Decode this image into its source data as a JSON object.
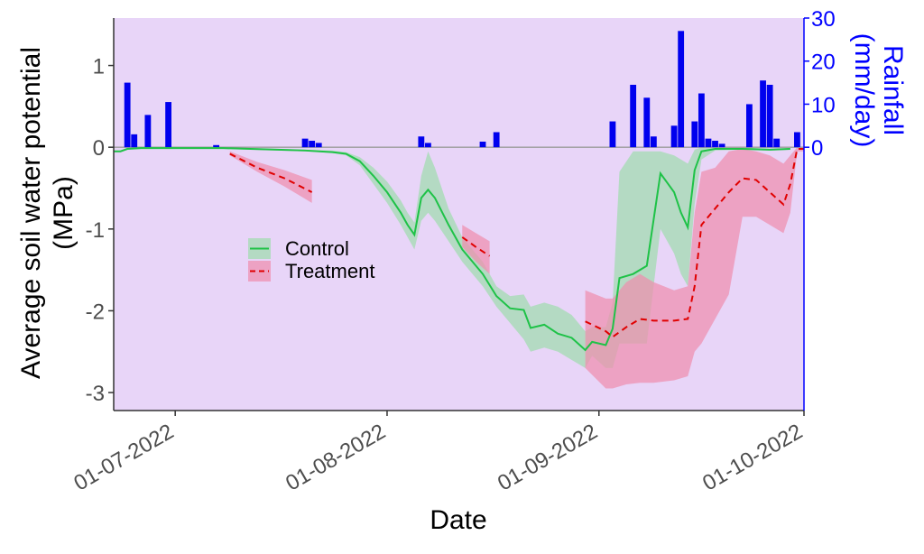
{
  "colors": {
    "panel_bg": "#e8d5f8",
    "control_line": "#1ec247",
    "control_ribbon": "#9fdcaf",
    "treatment_line": "#e00000",
    "treatment_ribbon": "#ef8faf",
    "rain_bar": "#0000ee",
    "zero_line": "#9a9a9a",
    "axis_line": "#333333",
    "rain_axis": "#0000ff"
  },
  "chart_data": {
    "type": "line",
    "xlabel": "Date",
    "ylabel_line1": "Average soil water potential",
    "ylabel_line2": "(MPa)",
    "y2label_line1": "Rainfall",
    "y2label_line2": "(mm/day)",
    "xlim": [
      "2022-06-22",
      "2022-10-01"
    ],
    "ylim": [
      -3.22,
      1.58
    ],
    "y2lim": [
      0,
      30
    ],
    "x_ticks": [
      {
        "date": "2022-07-01",
        "label": "01-07-2022"
      },
      {
        "date": "2022-08-01",
        "label": "01-08-2022"
      },
      {
        "date": "2022-09-01",
        "label": "01-09-2022"
      },
      {
        "date": "2022-10-01",
        "label": "01-10-2022"
      }
    ],
    "y_ticks": [
      {
        "value": 1,
        "label": "1"
      },
      {
        "value": 0,
        "label": "0"
      },
      {
        "value": -1,
        "label": "-1"
      },
      {
        "value": -2,
        "label": "-2"
      },
      {
        "value": -3,
        "label": "-3"
      }
    ],
    "y2_ticks": [
      {
        "value": 0,
        "label": "0"
      },
      {
        "value": 10,
        "label": "10"
      },
      {
        "value": 20,
        "label": "20"
      },
      {
        "value": 30,
        "label": "30"
      }
    ],
    "grid": false,
    "legend_position": "center-left",
    "legend": [
      {
        "label": "Control",
        "style": "solid",
        "series": "control"
      },
      {
        "label": "Treatment",
        "style": "dashed",
        "series": "treatment"
      }
    ],
    "series": [
      {
        "id": "control",
        "points": [
          [
            "2022-06-22",
            -0.05,
            -0.06,
            -0.04
          ],
          [
            "2022-06-23",
            -0.05,
            -0.06,
            -0.04
          ],
          [
            "2022-06-24",
            -0.02,
            -0.03,
            -0.01
          ],
          [
            "2022-06-26",
            -0.01,
            -0.02,
            0.0
          ],
          [
            "2022-06-30",
            -0.01,
            -0.02,
            0.0
          ],
          [
            "2022-07-04",
            -0.01,
            -0.02,
            0.0
          ],
          [
            "2022-07-08",
            -0.01,
            -0.02,
            0.0
          ],
          [
            "2022-07-12",
            -0.02,
            -0.03,
            -0.01
          ],
          [
            "2022-07-16",
            -0.03,
            -0.04,
            -0.02
          ],
          [
            "2022-07-20",
            -0.04,
            -0.05,
            -0.03
          ],
          [
            "2022-07-24",
            -0.06,
            -0.07,
            -0.04
          ],
          [
            "2022-07-26",
            -0.08,
            -0.1,
            -0.06
          ],
          [
            "2022-07-28",
            -0.17,
            -0.22,
            -0.12
          ],
          [
            "2022-07-30",
            -0.35,
            -0.45,
            -0.25
          ],
          [
            "2022-08-01",
            -0.55,
            -0.68,
            -0.42
          ],
          [
            "2022-08-03",
            -0.8,
            -0.95,
            -0.65
          ],
          [
            "2022-08-04",
            -0.95,
            -1.1,
            -0.8
          ],
          [
            "2022-08-05",
            -1.07,
            -1.25,
            -0.92
          ],
          [
            "2022-08-06",
            -0.62,
            -0.9,
            -0.35
          ],
          [
            "2022-08-07",
            -0.52,
            -0.8,
            -0.05
          ],
          [
            "2022-08-08",
            -0.62,
            -0.9,
            -0.25
          ],
          [
            "2022-08-10",
            -0.95,
            -1.15,
            -0.75
          ],
          [
            "2022-08-12",
            -1.25,
            -1.4,
            -1.1
          ],
          [
            "2022-08-15",
            -1.55,
            -1.7,
            -1.4
          ],
          [
            "2022-08-17",
            -1.82,
            -1.95,
            -1.7
          ],
          [
            "2022-08-19",
            -1.97,
            -2.15,
            -1.82
          ],
          [
            "2022-08-21",
            -1.99,
            -2.35,
            -1.8
          ],
          [
            "2022-08-22",
            -2.21,
            -2.5,
            -1.95
          ],
          [
            "2022-08-24",
            -2.17,
            -2.45,
            -1.9
          ],
          [
            "2022-08-26",
            -2.28,
            -2.5,
            -1.95
          ],
          [
            "2022-08-28",
            -2.33,
            -2.6,
            -2.05
          ],
          [
            "2022-08-30",
            -2.48,
            -2.7,
            -2.25
          ],
          [
            "2022-08-31",
            -2.38,
            -2.55,
            -2.2
          ],
          [
            "2022-09-02",
            -2.42,
            -2.7,
            -2.2
          ],
          [
            "2022-09-03",
            -2.22,
            -2.7,
            -1.9
          ],
          [
            "2022-09-04",
            -1.6,
            -2.4,
            -0.3
          ],
          [
            "2022-09-06",
            -1.55,
            -2.4,
            -0.05
          ],
          [
            "2022-09-08",
            -1.45,
            -2.4,
            -0.05
          ],
          [
            "2022-09-10",
            -0.32,
            -1.0,
            -0.05
          ],
          [
            "2022-09-12",
            -0.55,
            -1.3,
            -0.1
          ],
          [
            "2022-09-13",
            -0.8,
            -1.55,
            -0.15
          ],
          [
            "2022-09-14",
            -0.98,
            -1.7,
            -0.2
          ],
          [
            "2022-09-15",
            -0.28,
            -0.7,
            -0.03
          ],
          [
            "2022-09-16",
            -0.05,
            -0.15,
            0.0
          ],
          [
            "2022-09-18",
            -0.02,
            -0.04,
            0.0
          ],
          [
            "2022-09-22",
            -0.02,
            -0.03,
            0.0
          ],
          [
            "2022-09-26",
            -0.03,
            -0.04,
            -0.02
          ],
          [
            "2022-09-29",
            -0.02,
            -0.03,
            -0.01
          ]
        ]
      },
      {
        "id": "treatment",
        "segments": [
          [
            [
              "2022-07-09",
              -0.08,
              -0.1,
              -0.05
            ],
            [
              "2022-07-13",
              -0.25,
              -0.3,
              -0.18
            ],
            [
              "2022-07-17",
              -0.38,
              -0.48,
              -0.28
            ],
            [
              "2022-07-21",
              -0.55,
              -0.68,
              -0.4
            ]
          ],
          [
            [
              "2022-08-12",
              -1.1,
              -1.22,
              -0.95
            ],
            [
              "2022-08-14",
              -1.22,
              -1.4,
              -1.05
            ],
            [
              "2022-08-16",
              -1.33,
              -1.55,
              -1.15
            ]
          ],
          [
            [
              "2022-08-30",
              -2.13,
              -2.7,
              -1.75
            ],
            [
              "2022-09-02",
              -2.25,
              -2.95,
              -1.85
            ],
            [
              "2022-09-03",
              -2.32,
              -2.95,
              -1.85
            ],
            [
              "2022-09-05",
              -2.2,
              -2.9,
              -1.65
            ],
            [
              "2022-09-07",
              -2.1,
              -2.88,
              -1.55
            ],
            [
              "2022-09-09",
              -2.12,
              -2.88,
              -1.65
            ],
            [
              "2022-09-12",
              -2.12,
              -2.85,
              -1.75
            ],
            [
              "2022-09-14",
              -2.1,
              -2.8,
              -1.7
            ],
            [
              "2022-09-15",
              -1.7,
              -2.5,
              -0.8
            ],
            [
              "2022-09-16",
              -0.95,
              -2.4,
              -0.3
            ],
            [
              "2022-09-18",
              -0.75,
              -2.1,
              -0.25
            ],
            [
              "2022-09-20",
              -0.55,
              -1.8,
              -0.05
            ],
            [
              "2022-09-22",
              -0.38,
              -0.85,
              -0.02
            ],
            [
              "2022-09-24",
              -0.4,
              -0.85,
              -0.05
            ],
            [
              "2022-09-26",
              -0.55,
              -0.95,
              -0.1
            ],
            [
              "2022-09-28",
              -0.7,
              -1.05,
              -0.2
            ],
            [
              "2022-09-29",
              -0.45,
              -0.8,
              -0.1
            ],
            [
              "2022-09-30",
              -0.02,
              -0.05,
              0.0
            ],
            [
              "2022-10-01",
              -0.02,
              -0.05,
              0.0
            ]
          ]
        ]
      }
    ],
    "rainfall": [
      [
        "2022-06-24",
        15
      ],
      [
        "2022-06-25",
        3
      ],
      [
        "2022-06-27",
        7.5
      ],
      [
        "2022-06-30",
        10.5
      ],
      [
        "2022-07-07",
        0.5
      ],
      [
        "2022-07-20",
        2
      ],
      [
        "2022-07-21",
        1.5
      ],
      [
        "2022-07-22",
        1
      ],
      [
        "2022-08-06",
        2.5
      ],
      [
        "2022-08-07",
        1
      ],
      [
        "2022-08-15",
        1.3
      ],
      [
        "2022-08-17",
        3.5
      ],
      [
        "2022-09-03",
        6
      ],
      [
        "2022-09-06",
        14.5
      ],
      [
        "2022-09-08",
        11.5
      ],
      [
        "2022-09-09",
        2.5
      ],
      [
        "2022-09-12",
        5
      ],
      [
        "2022-09-13",
        27
      ],
      [
        "2022-09-15",
        6
      ],
      [
        "2022-09-16",
        12.5
      ],
      [
        "2022-09-17",
        2
      ],
      [
        "2022-09-18",
        1.5
      ],
      [
        "2022-09-19",
        0.8
      ],
      [
        "2022-09-23",
        10
      ],
      [
        "2022-09-25",
        15.5
      ],
      [
        "2022-09-26",
        14.5
      ],
      [
        "2022-09-27",
        2
      ],
      [
        "2022-09-30",
        3.5
      ]
    ]
  }
}
